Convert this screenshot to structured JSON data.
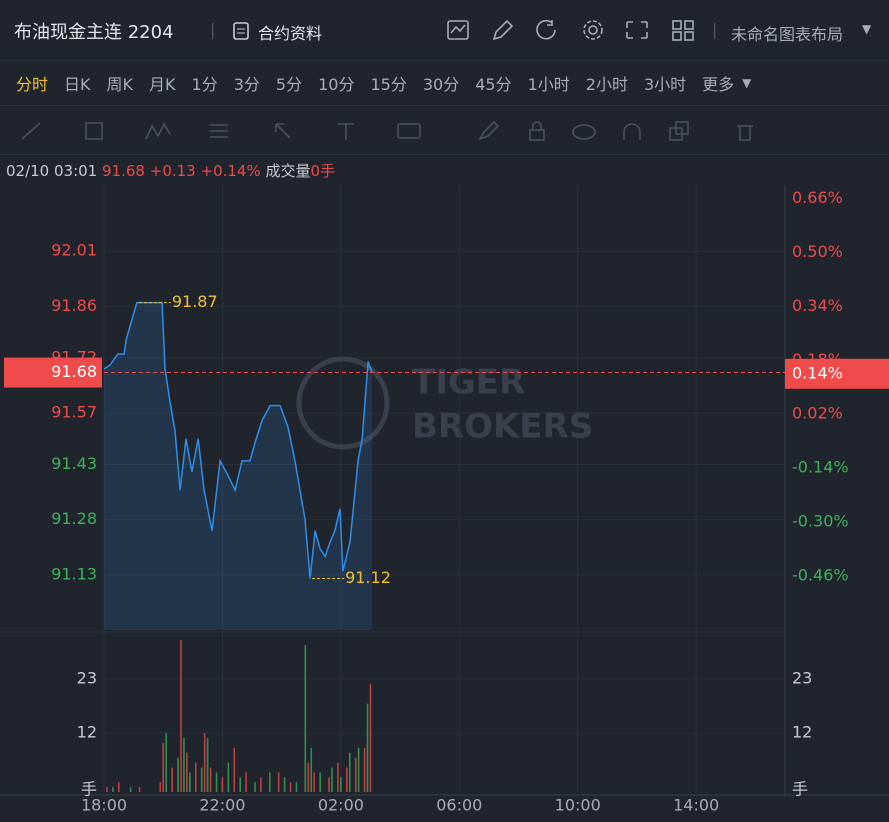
{
  "header": {
    "title": "布油现金主连 2204",
    "info": "合约资料",
    "layout": "未命名图表布局"
  },
  "timeframes": {
    "items": [
      "分时",
      "日K",
      "周K",
      "月K",
      "1分",
      "3分",
      "5分",
      "10分",
      "15分",
      "30分",
      "45分",
      "1小时",
      "2小时",
      "3小时"
    ],
    "more": "更多",
    "active": 0
  },
  "quote": {
    "time": "02/10 03:01",
    "price": "91.68",
    "change": "+0.13",
    "change_pct": "+0.14%",
    "volume_label": "成交量",
    "volume": "0手"
  },
  "chart_data": {
    "type": "line",
    "color": "#2f8fe8",
    "x": [
      0,
      0.2,
      0.47,
      0.68,
      0.75,
      1.11,
      1.96,
      2.06,
      2.23,
      2.4,
      2.57,
      2.77,
      2.97,
      3.18,
      3.38,
      3.65,
      3.92,
      4.19,
      4.43,
      4.66,
      4.93,
      5.14,
      5.34,
      5.61,
      5.95,
      6.22,
      6.45,
      6.62,
      6.79,
      6.96,
      7.13,
      7.3,
      7.47,
      7.64,
      7.8,
      7.97,
      8.07,
      8.31,
      8.58,
      8.72,
      8.92,
      9.05
    ],
    "values": [
      91.69,
      91.7,
      91.73,
      91.73,
      91.77,
      91.87,
      91.87,
      91.69,
      91.6,
      91.52,
      91.36,
      91.5,
      91.41,
      91.5,
      91.36,
      91.25,
      91.44,
      91.4,
      91.36,
      91.44,
      91.44,
      91.5,
      91.55,
      91.59,
      91.59,
      91.53,
      91.44,
      91.36,
      91.28,
      91.12,
      91.25,
      91.2,
      91.18,
      91.22,
      91.25,
      91.31,
      91.14,
      91.22,
      91.44,
      91.5,
      91.71,
      91.68
    ],
    "xlim": [
      0,
      23
    ],
    "xticks": [
      {
        "value": 0,
        "label": "18:00"
      },
      {
        "value": 4,
        "label": "22:00"
      },
      {
        "value": 8,
        "label": "02:00"
      },
      {
        "value": 12,
        "label": "06:00"
      },
      {
        "value": 16,
        "label": "10:00"
      },
      {
        "value": 20,
        "label": "14:00"
      }
    ],
    "ylim": [
      90.98,
      92.19
    ],
    "yticks": [
      91.13,
      91.28,
      91.43,
      91.57,
      91.72,
      91.86,
      92.01
    ],
    "y2lim": [
      -0.62,
      0.7
    ],
    "y2ticks": [
      {
        "value": 0.66,
        "label": "0.66%"
      },
      {
        "value": 0.5,
        "label": "0.50%"
      },
      {
        "value": 0.34,
        "label": "0.34%"
      },
      {
        "value": 0.18,
        "label": "0.18%"
      },
      {
        "value": 0.02,
        "label": "0.02%"
      },
      {
        "value": -0.14,
        "label": "-0.14%"
      },
      {
        "value": -0.3,
        "label": "-0.30%"
      },
      {
        "value": -0.46,
        "label": "-0.46%"
      }
    ],
    "grid": true,
    "up_color": "#f04b4b",
    "down_color": "#3db35a",
    "marker_color": "#f0c030",
    "high": 91.87,
    "low": 91.12,
    "last": 91.68,
    "last_pct": {
      "value": 0.14,
      "label": "0.14%"
    },
    "watermark": [
      "TIGER",
      "BROKERS"
    ],
    "volume": {
      "ylim": [
        0,
        32
      ],
      "yticks": [
        12,
        23
      ],
      "unit": "手",
      "up": {
        "x": [
          0.1,
          0.5,
          1.2,
          1.9,
          2.0,
          2.3,
          2.6,
          2.8,
          3.1,
          3.4,
          3.6,
          4.0,
          4.4,
          4.8,
          5.3,
          5.9,
          6.3,
          6.9,
          7.1,
          7.6,
          7.9,
          8.2,
          8.5,
          8.8,
          9.0
        ],
        "values": [
          1,
          2,
          1,
          2,
          10,
          5,
          31,
          8,
          6,
          12,
          5,
          3,
          9,
          4,
          3,
          4,
          2,
          6,
          4,
          3,
          6,
          5,
          7,
          9,
          22
        ]
      },
      "down": {
        "x": [
          0.3,
          0.9,
          2.1,
          2.5,
          2.7,
          2.9,
          3.3,
          3.5,
          3.8,
          4.2,
          4.6,
          5.1,
          5.6,
          6.1,
          6.5,
          6.8,
          7.0,
          7.3,
          7.7,
          8.0,
          8.3,
          8.6,
          8.9
        ],
        "values": [
          1,
          1,
          12,
          7,
          11,
          4,
          5,
          11,
          4,
          6,
          3,
          2,
          4,
          3,
          2,
          30,
          9,
          4,
          5,
          3,
          8,
          9,
          18
        ]
      }
    }
  }
}
